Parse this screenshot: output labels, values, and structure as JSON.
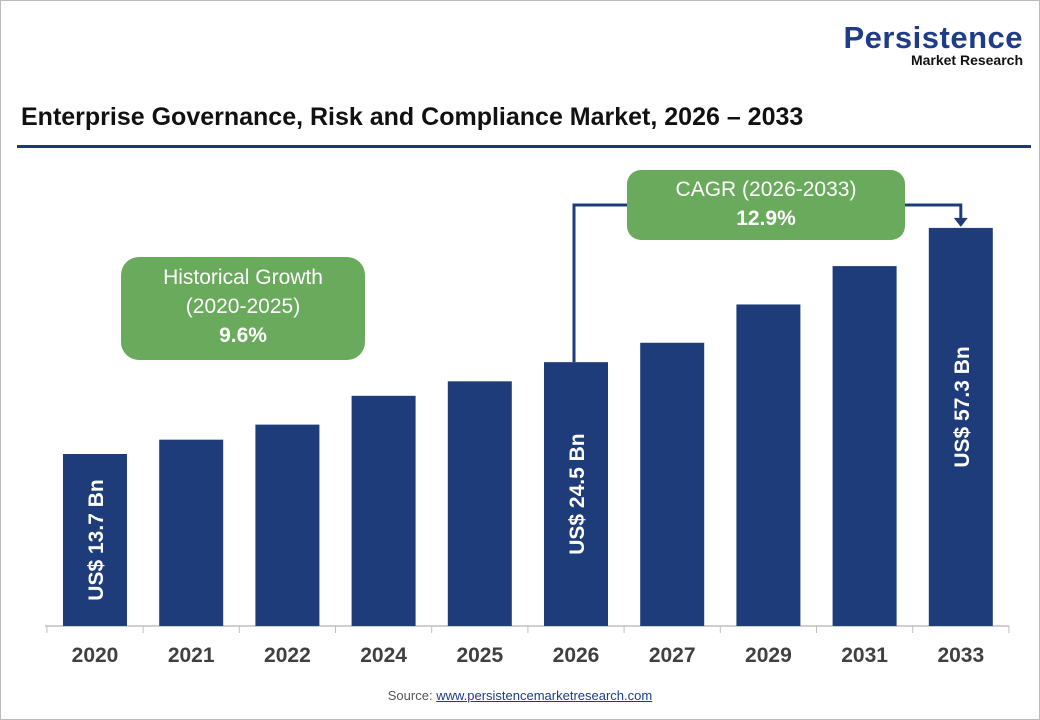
{
  "logo": {
    "line1": "Persistence",
    "line2": "Market Research"
  },
  "title": "Enterprise Governance, Risk and Compliance Market, 2026 – 2033",
  "historical_box": {
    "line1": "Historical Growth",
    "line2": "(2020-2025)",
    "value": "9.6%"
  },
  "cagr_box": {
    "line1": "CAGR (2026-2033)",
    "value": "12.9%"
  },
  "source": {
    "prefix": "Source: ",
    "link": "www.persistencemarketresearch.com"
  },
  "colors": {
    "bar": "#1f3c7a",
    "box": "#6aaa5c",
    "title_rule": "#1f3a73"
  },
  "chart_data": {
    "type": "bar",
    "title": "Enterprise Governance, Risk and Compliance Market, 2026 – 2033",
    "categories": [
      "2020",
      "2021",
      "2022",
      "2024",
      "2025",
      "2026",
      "2027",
      "2029",
      "2031",
      "2033"
    ],
    "values": [
      13.7,
      15.0,
      16.5,
      19.8,
      21.7,
      24.5,
      27.7,
      35.3,
      45.0,
      57.3
    ],
    "unit": "US$ Bn",
    "data_labels": [
      {
        "category": "2020",
        "text": "US$ 13.7 Bn"
      },
      {
        "category": "2026",
        "text": "US$ 24.5 Bn"
      },
      {
        "category": "2033",
        "text": "US$ 57.3 Bn"
      }
    ],
    "grid": false,
    "legend": "none"
  }
}
